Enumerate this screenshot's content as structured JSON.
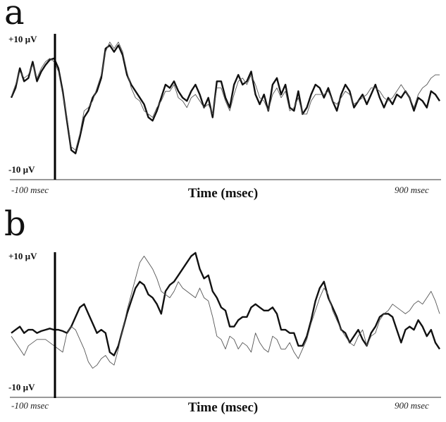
{
  "chart_data": [
    {
      "type": "line",
      "panel_label": "a",
      "title": "",
      "xlabel": "Time (msec)",
      "ylabel": "",
      "x_tick_labels": [
        "-100 msec",
        "900 msec"
      ],
      "y_tick_labels": [
        "+10 µV",
        "-10 µV"
      ],
      "xlim": [
        -100,
        900
      ],
      "ylim": [
        -10,
        10
      ],
      "grid": false,
      "legend": false,
      "series": [
        {
          "style": "thick",
          "x": [
            -100,
            -90,
            -80,
            -70,
            -60,
            -50,
            -40,
            -30,
            -20,
            -10,
            0,
            10,
            20,
            30,
            40,
            50,
            60,
            70,
            80,
            90,
            100,
            110,
            120,
            130,
            140,
            150,
            160,
            170,
            180,
            190,
            200,
            210,
            220,
            230,
            240,
            250,
            260,
            270,
            280,
            290,
            300,
            310,
            320,
            330,
            340,
            350,
            360,
            370,
            380,
            390,
            400,
            410,
            420,
            430,
            440,
            450,
            460,
            470,
            480,
            490,
            500,
            510,
            520,
            530,
            540,
            550,
            560,
            570,
            580,
            590,
            600,
            610,
            620,
            630,
            640,
            650,
            660,
            670,
            680,
            690,
            700,
            710,
            720,
            730,
            740,
            750,
            760,
            770,
            780,
            790,
            800,
            810,
            820,
            830,
            840,
            850,
            860,
            870,
            880,
            890,
            900
          ],
          "y": [
            1.0,
            2.5,
            5.5,
            3.5,
            4.0,
            6.5,
            3.5,
            5.0,
            6.0,
            6.8,
            7.0,
            5.5,
            2.0,
            -2.5,
            -7.0,
            -7.5,
            -5.0,
            -2.0,
            -1.0,
            1.0,
            2.0,
            4.0,
            8.5,
            9.0,
            8.0,
            9.0,
            7.5,
            4.5,
            3.0,
            2.0,
            1.0,
            0.0,
            -2.0,
            -2.5,
            -1.0,
            1.0,
            3.0,
            2.5,
            3.5,
            2.0,
            1.0,
            0.5,
            2.0,
            3.0,
            1.5,
            -0.5,
            1.0,
            -2.0,
            3.5,
            3.5,
            1.0,
            -0.5,
            3.0,
            4.5,
            3.0,
            3.5,
            5.0,
            1.5,
            0.0,
            1.5,
            -1.0,
            3.0,
            4.0,
            1.5,
            3.0,
            -0.5,
            -1.0,
            2.0,
            -1.5,
            -0.5,
            1.5,
            3.0,
            2.5,
            1.0,
            2.5,
            0.5,
            -1.0,
            1.5,
            3.0,
            2.0,
            -0.5,
            0.5,
            1.5,
            0.0,
            1.5,
            3.0,
            1.0,
            -0.5,
            1.0,
            0.0,
            1.5,
            1.0,
            2.0,
            1.0,
            -1.0,
            1.0,
            0.5,
            -0.5,
            2.0,
            1.5,
            0.5
          ]
        },
        {
          "style": "thin",
          "x": [
            -100,
            -90,
            -80,
            -70,
            -60,
            -50,
            -40,
            -30,
            -20,
            -10,
            0,
            10,
            20,
            30,
            40,
            50,
            60,
            70,
            80,
            90,
            100,
            110,
            120,
            130,
            140,
            150,
            160,
            170,
            180,
            190,
            200,
            210,
            220,
            230,
            240,
            250,
            260,
            270,
            280,
            290,
            300,
            310,
            320,
            330,
            340,
            350,
            360,
            370,
            380,
            390,
            400,
            410,
            420,
            430,
            440,
            450,
            460,
            470,
            480,
            490,
            500,
            510,
            520,
            530,
            540,
            550,
            560,
            570,
            580,
            590,
            600,
            610,
            620,
            630,
            640,
            650,
            660,
            670,
            680,
            690,
            700,
            710,
            720,
            730,
            740,
            750,
            760,
            770,
            780,
            790,
            800,
            810,
            820,
            830,
            840,
            850,
            860,
            870,
            880,
            890,
            900
          ],
          "y": [
            1.2,
            3.0,
            5.0,
            4.0,
            4.5,
            6.0,
            4.0,
            5.5,
            6.5,
            7.0,
            6.5,
            5.0,
            1.5,
            -2.0,
            -6.5,
            -7.0,
            -4.5,
            -1.0,
            -0.5,
            0.5,
            2.5,
            4.5,
            8.0,
            9.5,
            8.5,
            9.5,
            8.0,
            5.0,
            2.5,
            1.0,
            0.5,
            -1.0,
            -1.5,
            -2.0,
            -0.5,
            0.5,
            2.0,
            2.0,
            3.0,
            1.0,
            0.5,
            -0.5,
            1.0,
            1.5,
            0.5,
            -0.5,
            0.0,
            -1.5,
            2.5,
            2.5,
            0.5,
            -1.0,
            1.5,
            3.5,
            4.0,
            3.0,
            4.5,
            3.0,
            1.0,
            0.5,
            -1.0,
            1.5,
            2.5,
            1.0,
            2.0,
            -1.0,
            -0.5,
            1.0,
            -1.5,
            -1.5,
            0.5,
            1.5,
            1.5,
            1.5,
            2.0,
            0.5,
            0.0,
            1.0,
            2.0,
            1.5,
            0.0,
            0.5,
            1.0,
            1.5,
            2.5,
            2.5,
            2.0,
            1.0,
            0.5,
            1.0,
            2.0,
            3.0,
            2.0,
            1.0,
            -0.5,
            1.5,
            2.5,
            3.0,
            4.0,
            4.5,
            4.5
          ]
        }
      ]
    },
    {
      "type": "line",
      "panel_label": "b",
      "title": "",
      "xlabel": "Time (msec)",
      "ylabel": "",
      "x_tick_labels": [
        "-100 msec",
        "900 msec"
      ],
      "y_tick_labels": [
        "+10 µV",
        "-10 µV"
      ],
      "xlim": [
        -100,
        900
      ],
      "ylim": [
        -10,
        10
      ],
      "grid": false,
      "legend": false,
      "series": [
        {
          "style": "thick",
          "x": [
            -100,
            -90,
            -80,
            -70,
            -60,
            -50,
            -40,
            -30,
            -20,
            -10,
            0,
            10,
            20,
            30,
            40,
            50,
            60,
            70,
            80,
            90,
            100,
            110,
            120,
            130,
            140,
            150,
            160,
            170,
            180,
            190,
            200,
            210,
            220,
            230,
            240,
            250,
            260,
            270,
            280,
            290,
            300,
            310,
            320,
            330,
            340,
            350,
            360,
            370,
            380,
            390,
            400,
            410,
            420,
            430,
            440,
            450,
            460,
            470,
            480,
            490,
            500,
            510,
            520,
            530,
            540,
            550,
            560,
            570,
            580,
            590,
            600,
            610,
            620,
            630,
            640,
            650,
            660,
            670,
            680,
            690,
            700,
            710,
            720,
            730,
            740,
            750,
            760,
            770,
            780,
            790,
            800,
            810,
            820,
            830,
            840,
            850,
            860,
            870,
            880,
            890,
            900
          ],
          "y": [
            -1.5,
            -1.0,
            -0.5,
            -1.5,
            -1.0,
            -1.0,
            -1.5,
            -1.2,
            -1.0,
            -0.8,
            -1.0,
            -1.0,
            -1.2,
            -1.5,
            -0.5,
            1.0,
            2.5,
            3.0,
            1.5,
            0.0,
            -1.5,
            -1.0,
            -1.5,
            -4.5,
            -5.0,
            -3.5,
            -1.0,
            1.5,
            3.5,
            5.5,
            6.5,
            6.0,
            4.5,
            4.0,
            3.0,
            1.5,
            5.0,
            6.0,
            6.5,
            7.5,
            8.5,
            9.5,
            10.5,
            11.0,
            8.5,
            7.0,
            7.5,
            5.0,
            4.0,
            2.5,
            2.0,
            -0.5,
            -0.5,
            0.5,
            1.0,
            1.0,
            2.5,
            3.0,
            2.5,
            2.0,
            2.0,
            2.5,
            1.5,
            -1.0,
            -1.0,
            -1.5,
            -1.5,
            -3.5,
            -3.5,
            -2.0,
            0.5,
            3.5,
            5.5,
            6.5,
            4.0,
            2.5,
            1.0,
            -1.0,
            -1.5,
            -3.0,
            -2.0,
            -1.0,
            -2.5,
            -3.5,
            -1.5,
            -0.5,
            1.0,
            1.5,
            1.5,
            1.0,
            -1.0,
            -3.0,
            -1.0,
            -0.5,
            -1.0,
            0.5,
            -0.5,
            -2.0,
            -1.0,
            -3.0,
            -4.0
          ]
        },
        {
          "style": "thin",
          "x": [
            -100,
            -90,
            -80,
            -70,
            -60,
            -50,
            -40,
            -30,
            -20,
            -10,
            0,
            10,
            20,
            30,
            40,
            50,
            60,
            70,
            80,
            90,
            100,
            110,
            120,
            130,
            140,
            150,
            160,
            170,
            180,
            190,
            200,
            210,
            220,
            230,
            240,
            250,
            260,
            270,
            280,
            290,
            300,
            310,
            320,
            330,
            340,
            350,
            360,
            370,
            380,
            390,
            400,
            410,
            420,
            430,
            440,
            450,
            460,
            470,
            480,
            490,
            500,
            510,
            520,
            530,
            540,
            550,
            560,
            570,
            580,
            590,
            600,
            610,
            620,
            630,
            640,
            650,
            660,
            670,
            680,
            690,
            700,
            710,
            720,
            730,
            740,
            750,
            760,
            770,
            780,
            790,
            800,
            810,
            820,
            830,
            840,
            850,
            860,
            870,
            880,
            890,
            900
          ],
          "y": [
            -2.0,
            -3.0,
            -4.0,
            -5.0,
            -3.5,
            -3.0,
            -2.5,
            -2.5,
            -2.5,
            -3.0,
            -3.5,
            -4.0,
            -4.5,
            -1.5,
            -0.5,
            -1.0,
            -2.5,
            -4.0,
            -6.0,
            -7.0,
            -6.5,
            -5.5,
            -5.0,
            -6.0,
            -6.5,
            -4.0,
            -1.0,
            2.0,
            4.5,
            7.0,
            9.5,
            10.5,
            9.5,
            8.5,
            7.0,
            5.0,
            4.5,
            4.0,
            5.0,
            6.5,
            5.5,
            5.0,
            4.5,
            4.0,
            5.5,
            4.0,
            3.5,
            1.0,
            -2.0,
            -2.5,
            -4.0,
            -2.0,
            -2.5,
            -4.0,
            -3.0,
            -3.5,
            -4.5,
            -1.5,
            -3.0,
            -4.0,
            -4.5,
            -2.0,
            -2.5,
            -4.0,
            -4.0,
            -3.0,
            -4.5,
            -5.5,
            -4.0,
            -2.5,
            0.0,
            2.0,
            4.0,
            5.5,
            4.5,
            2.0,
            0.5,
            -1.0,
            -2.0,
            -3.0,
            -3.5,
            -2.0,
            -1.0,
            -3.5,
            -2.0,
            -1.5,
            0.5,
            1.5,
            2.0,
            3.0,
            2.5,
            2.0,
            1.5,
            2.0,
            3.0,
            3.5,
            3.0,
            4.0,
            5.0,
            3.5,
            1.5
          ]
        }
      ]
    }
  ]
}
